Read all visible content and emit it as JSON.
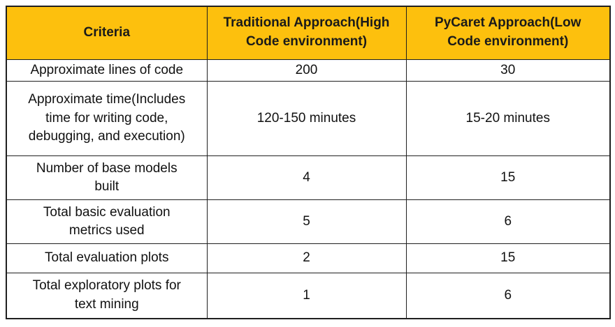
{
  "colors": {
    "header_bg": "#FDC00D",
    "header_text": "#1A1A1A",
    "border_color": "#1F1F1F",
    "cell_bg": "#FFFFFF",
    "text_color": "#111111"
  },
  "chart_data": {
    "type": "table",
    "columns": [
      "Criteria",
      "Traditional Approach(High Code environment)",
      "PyCaret Approach(Low Code environment)"
    ],
    "rows": [
      [
        "Approximate lines of code",
        "200",
        "30"
      ],
      [
        "Approximate time(Includes time for writing code, debugging, and execution)",
        "120-150 minutes",
        "15-20 minutes"
      ],
      [
        "Number of base models built",
        "4",
        "15"
      ],
      [
        "Total basic evaluation metrics used",
        "5",
        "6"
      ],
      [
        "Total evaluation plots",
        "2",
        "15"
      ],
      [
        "Total exploratory plots for text mining",
        "1",
        "6"
      ]
    ]
  }
}
